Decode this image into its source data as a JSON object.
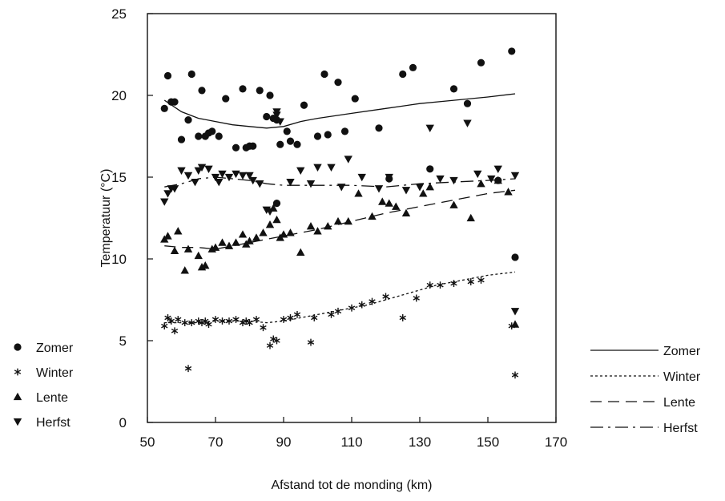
{
  "chart_data": {
    "type": "scatter",
    "title": "",
    "xlabel": "Afstand tot de monding (km)",
    "ylabel": "Temperatuur (°C)",
    "xlim": [
      50,
      170
    ],
    "ylim": [
      0,
      25
    ],
    "xticks": [
      50,
      70,
      90,
      110,
      130,
      150,
      170
    ],
    "yticks": [
      0,
      5,
      10,
      15,
      20,
      25
    ],
    "grid": false,
    "legend_points": {
      "placement": "left",
      "entries": [
        "Zomer",
        "Winter",
        "Lente",
        "Herfst"
      ]
    },
    "legend_lines": {
      "placement": "right",
      "entries": [
        "Zomer",
        "Winter",
        "Lente",
        "Herfst"
      ]
    },
    "series": [
      {
        "name": "Zomer",
        "marker": "circle",
        "line_style": "solid",
        "points": [
          [
            55,
            19.2
          ],
          [
            56,
            21.2
          ],
          [
            57,
            19.6
          ],
          [
            58,
            19.6
          ],
          [
            60,
            17.3
          ],
          [
            62,
            18.5
          ],
          [
            63,
            21.3
          ],
          [
            65,
            17.5
          ],
          [
            66,
            20.3
          ],
          [
            67,
            17.5
          ],
          [
            68,
            17.7
          ],
          [
            69,
            17.8
          ],
          [
            71,
            17.5
          ],
          [
            73,
            19.8
          ],
          [
            76,
            16.8
          ],
          [
            78,
            20.4
          ],
          [
            79,
            16.8
          ],
          [
            80,
            16.9
          ],
          [
            81,
            16.9
          ],
          [
            83,
            20.3
          ],
          [
            85,
            18.7
          ],
          [
            86,
            20.0
          ],
          [
            87,
            18.6
          ],
          [
            88,
            13.4
          ],
          [
            88,
            18.5
          ],
          [
            89,
            17.0
          ],
          [
            91,
            17.8
          ],
          [
            92,
            17.2
          ],
          [
            94,
            17.0
          ],
          [
            96,
            19.4
          ],
          [
            100,
            17.5
          ],
          [
            102,
            21.3
          ],
          [
            103,
            17.6
          ],
          [
            106,
            20.8
          ],
          [
            108,
            17.8
          ],
          [
            111,
            19.8
          ],
          [
            118,
            18.0
          ],
          [
            121,
            14.9
          ],
          [
            125,
            21.3
          ],
          [
            128,
            21.7
          ],
          [
            133,
            15.5
          ],
          [
            140,
            20.4
          ],
          [
            144,
            19.5
          ],
          [
            148,
            22.0
          ],
          [
            153,
            14.8
          ],
          [
            157,
            22.7
          ],
          [
            158,
            10.1
          ]
        ],
        "curve": [
          [
            55,
            19.7
          ],
          [
            60,
            19.0
          ],
          [
            65,
            18.6
          ],
          [
            70,
            18.4
          ],
          [
            75,
            18.2
          ],
          [
            80,
            18.1
          ],
          [
            85,
            18.0
          ],
          [
            90,
            18.1
          ],
          [
            95,
            18.4
          ],
          [
            100,
            18.6
          ],
          [
            110,
            18.9
          ],
          [
            120,
            19.2
          ],
          [
            130,
            19.5
          ],
          [
            140,
            19.7
          ],
          [
            150,
            19.9
          ],
          [
            158,
            20.1
          ]
        ]
      },
      {
        "name": "Winter",
        "marker": "asterisk",
        "line_style": "dotted",
        "points": [
          [
            55,
            5.9
          ],
          [
            56,
            6.4
          ],
          [
            57,
            6.2
          ],
          [
            58,
            5.6
          ],
          [
            59,
            6.3
          ],
          [
            61,
            6.1
          ],
          [
            62,
            3.3
          ],
          [
            63,
            6.1
          ],
          [
            65,
            6.2
          ],
          [
            66,
            6.1
          ],
          [
            67,
            6.2
          ],
          [
            68,
            6.0
          ],
          [
            70,
            6.3
          ],
          [
            72,
            6.2
          ],
          [
            74,
            6.2
          ],
          [
            76,
            6.3
          ],
          [
            78,
            6.1
          ],
          [
            79,
            6.2
          ],
          [
            80,
            6.1
          ],
          [
            82,
            6.3
          ],
          [
            84,
            5.8
          ],
          [
            86,
            4.7
          ],
          [
            87,
            5.1
          ],
          [
            88,
            5.0
          ],
          [
            90,
            6.3
          ],
          [
            92,
            6.4
          ],
          [
            94,
            6.6
          ],
          [
            98,
            4.9
          ],
          [
            99,
            6.4
          ],
          [
            104,
            6.6
          ],
          [
            106,
            6.8
          ],
          [
            110,
            7.0
          ],
          [
            113,
            7.2
          ],
          [
            116,
            7.4
          ],
          [
            120,
            7.7
          ],
          [
            125,
            6.4
          ],
          [
            129,
            7.6
          ],
          [
            133,
            8.4
          ],
          [
            136,
            8.4
          ],
          [
            140,
            8.5
          ],
          [
            145,
            8.6
          ],
          [
            148,
            8.7
          ],
          [
            157,
            5.9
          ],
          [
            158,
            2.9
          ]
        ],
        "curve": [
          [
            55,
            6.1
          ],
          [
            60,
            6.1
          ],
          [
            65,
            6.1
          ],
          [
            70,
            6.2
          ],
          [
            75,
            6.2
          ],
          [
            80,
            6.2
          ],
          [
            85,
            6.1
          ],
          [
            90,
            6.2
          ],
          [
            95,
            6.4
          ],
          [
            100,
            6.6
          ],
          [
            105,
            6.8
          ],
          [
            110,
            7.0
          ],
          [
            115,
            7.2
          ],
          [
            120,
            7.5
          ],
          [
            125,
            7.8
          ],
          [
            130,
            8.1
          ],
          [
            135,
            8.4
          ],
          [
            140,
            8.6
          ],
          [
            145,
            8.8
          ],
          [
            150,
            9.0
          ],
          [
            158,
            9.2
          ]
        ]
      },
      {
        "name": "Lente",
        "marker": "triangle-up",
        "line_style": "dashed",
        "points": [
          [
            55,
            11.2
          ],
          [
            56,
            11.4
          ],
          [
            58,
            10.5
          ],
          [
            59,
            11.7
          ],
          [
            61,
            9.3
          ],
          [
            62,
            10.6
          ],
          [
            65,
            10.2
          ],
          [
            66,
            9.5
          ],
          [
            67,
            9.6
          ],
          [
            69,
            10.6
          ],
          [
            70,
            10.7
          ],
          [
            72,
            11.0
          ],
          [
            74,
            10.8
          ],
          [
            76,
            11.0
          ],
          [
            78,
            11.5
          ],
          [
            79,
            10.9
          ],
          [
            80,
            11.1
          ],
          [
            82,
            11.3
          ],
          [
            84,
            11.6
          ],
          [
            86,
            12.1
          ],
          [
            87,
            13.1
          ],
          [
            88,
            12.4
          ],
          [
            89,
            11.3
          ],
          [
            90,
            11.5
          ],
          [
            92,
            11.6
          ],
          [
            95,
            10.4
          ],
          [
            98,
            12.0
          ],
          [
            100,
            11.7
          ],
          [
            103,
            12.0
          ],
          [
            106,
            12.3
          ],
          [
            109,
            12.3
          ],
          [
            112,
            14.0
          ],
          [
            116,
            12.6
          ],
          [
            119,
            13.5
          ],
          [
            121,
            13.4
          ],
          [
            123,
            13.2
          ],
          [
            126,
            12.8
          ],
          [
            131,
            14.0
          ],
          [
            133,
            14.4
          ],
          [
            140,
            13.3
          ],
          [
            145,
            12.5
          ],
          [
            148,
            14.6
          ],
          [
            153,
            14.8
          ],
          [
            156,
            14.1
          ],
          [
            158,
            6.0
          ]
        ],
        "curve": [
          [
            55,
            10.8
          ],
          [
            60,
            10.7
          ],
          [
            65,
            10.7
          ],
          [
            70,
            10.6
          ],
          [
            75,
            10.8
          ],
          [
            80,
            11.0
          ],
          [
            85,
            11.2
          ],
          [
            90,
            11.4
          ],
          [
            100,
            11.8
          ],
          [
            110,
            12.3
          ],
          [
            120,
            12.8
          ],
          [
            130,
            13.2
          ],
          [
            140,
            13.6
          ],
          [
            150,
            14.0
          ],
          [
            158,
            14.2
          ]
        ]
      },
      {
        "name": "Herfst",
        "marker": "triangle-down",
        "line_style": "dashdot",
        "points": [
          [
            55,
            13.5
          ],
          [
            56,
            14.0
          ],
          [
            57,
            14.3
          ],
          [
            58,
            14.3
          ],
          [
            60,
            15.4
          ],
          [
            62,
            15.1
          ],
          [
            64,
            14.7
          ],
          [
            65,
            15.4
          ],
          [
            66,
            15.6
          ],
          [
            68,
            15.5
          ],
          [
            70,
            15.0
          ],
          [
            71,
            14.7
          ],
          [
            72,
            15.2
          ],
          [
            74,
            15.0
          ],
          [
            76,
            15.2
          ],
          [
            78,
            15.1
          ],
          [
            80,
            15.1
          ],
          [
            81,
            14.8
          ],
          [
            83,
            14.6
          ],
          [
            85,
            13.0
          ],
          [
            86,
            12.9
          ],
          [
            88,
            18.8
          ],
          [
            88,
            19.0
          ],
          [
            89,
            18.4
          ],
          [
            92,
            14.7
          ],
          [
            95,
            15.4
          ],
          [
            98,
            14.6
          ],
          [
            100,
            15.6
          ],
          [
            104,
            15.6
          ],
          [
            107,
            14.4
          ],
          [
            109,
            16.1
          ],
          [
            113,
            15.0
          ],
          [
            118,
            14.3
          ],
          [
            121,
            15.0
          ],
          [
            126,
            14.2
          ],
          [
            130,
            14.4
          ],
          [
            133,
            18.0
          ],
          [
            136,
            14.9
          ],
          [
            140,
            14.8
          ],
          [
            144,
            18.3
          ],
          [
            147,
            15.2
          ],
          [
            151,
            14.9
          ],
          [
            153,
            15.5
          ],
          [
            158,
            6.8
          ],
          [
            158,
            15.1
          ]
        ],
        "curve": [
          [
            55,
            14.4
          ],
          [
            60,
            14.6
          ],
          [
            65,
            14.9
          ],
          [
            70,
            15.0
          ],
          [
            75,
            14.9
          ],
          [
            80,
            14.8
          ],
          [
            85,
            14.6
          ],
          [
            90,
            14.5
          ],
          [
            100,
            14.5
          ],
          [
            110,
            14.5
          ],
          [
            120,
            14.4
          ],
          [
            130,
            14.6
          ],
          [
            140,
            14.7
          ],
          [
            150,
            14.8
          ],
          [
            158,
            14.9
          ]
        ]
      }
    ]
  }
}
